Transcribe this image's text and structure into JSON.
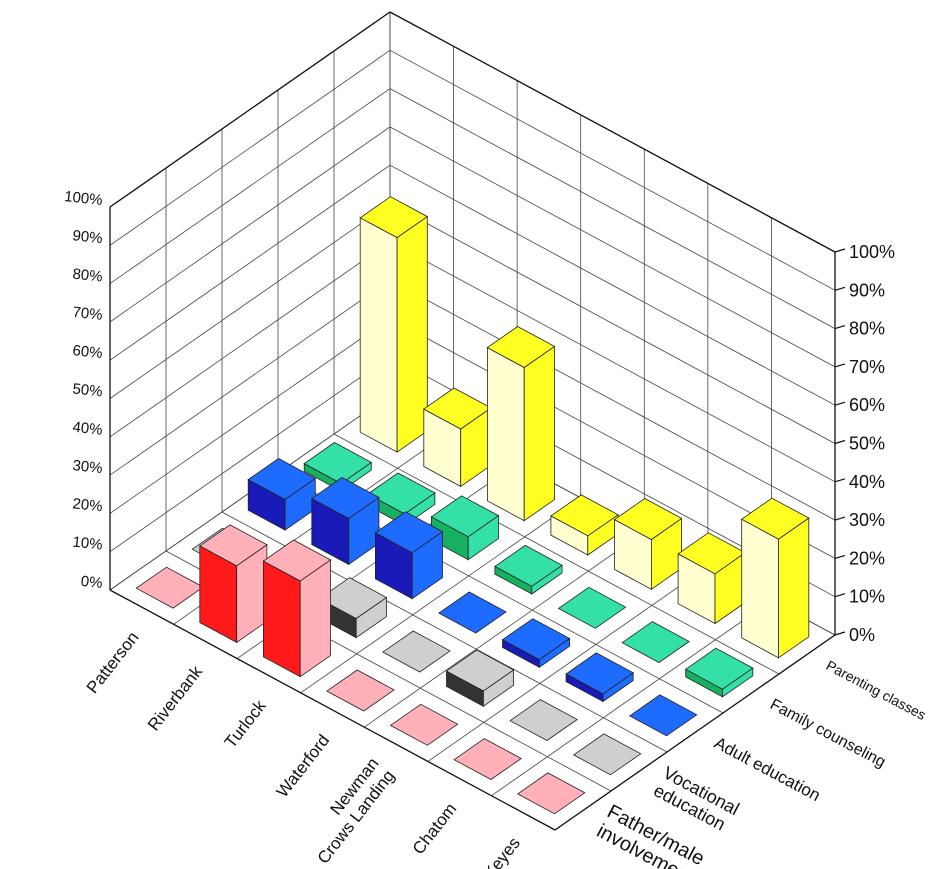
{
  "chart_data": {
    "type": "bar",
    "title": "",
    "xlabel": "",
    "ylabel": "",
    "ylim": [
      0,
      100
    ],
    "y_ticks": [
      "0%",
      "10%",
      "20%",
      "30%",
      "40%",
      "50%",
      "60%",
      "70%",
      "80%",
      "90%",
      "100%"
    ],
    "categories": [
      "Patterson",
      "Riverbank",
      "Turlock",
      "Waterford",
      "Newman\nCrows Landing",
      "Chatom",
      "Keyes"
    ],
    "series": [
      {
        "name": "Father/male\ninvolvement",
        "color": "#ffb0b8",
        "side_color": "#ff1a1a",
        "values": [
          0,
          20,
          25,
          0,
          0,
          0,
          0
        ]
      },
      {
        "name": "Vocational\neducation",
        "color": "#cfcfcf",
        "side_color": "#333333",
        "values": [
          0,
          2,
          5,
          0,
          4,
          0,
          0
        ]
      },
      {
        "name": "Adult education",
        "color": "#1e6bff",
        "side_color": "#1a1ab8",
        "values": [
          8,
          12,
          12,
          0,
          2,
          2,
          0
        ]
      },
      {
        "name": "Family counseling",
        "color": "#33e0a8",
        "side_color": "#16b060",
        "values": [
          2,
          3,
          6,
          2,
          0,
          0,
          2
        ]
      },
      {
        "name": "Parenting classes",
        "color": "#ffff22",
        "side_color": "#ffffd0",
        "values": [
          56,
          15,
          40,
          5,
          13,
          13,
          31
        ]
      }
    ],
    "grid": true,
    "legend": "none"
  }
}
